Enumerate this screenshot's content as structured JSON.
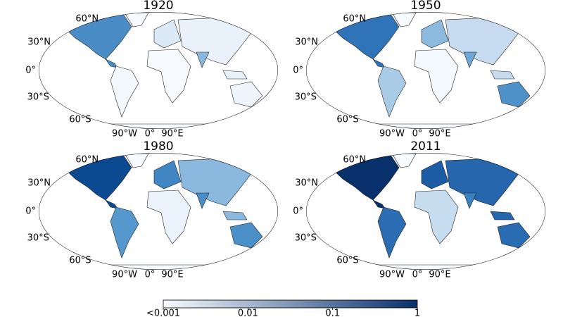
{
  "panels": [
    {
      "title": "1920"
    },
    {
      "title": "1950"
    },
    {
      "title": "1980"
    },
    {
      "title": "2011"
    }
  ],
  "lat_labels": [
    "60°N",
    "30°N",
    "0°",
    "30°S",
    "60°S"
  ],
  "lon_labels": [
    "90°W",
    "0°",
    "90°E"
  ],
  "colorbar": {
    "scale": "log",
    "range": [
      0.001,
      1
    ],
    "ticks": [
      {
        "value": 0.001,
        "label": "<0.001"
      },
      0.01,
      0.1,
      1
    ],
    "colors": [
      "#f7fbff",
      "#08306b"
    ]
  }
}
